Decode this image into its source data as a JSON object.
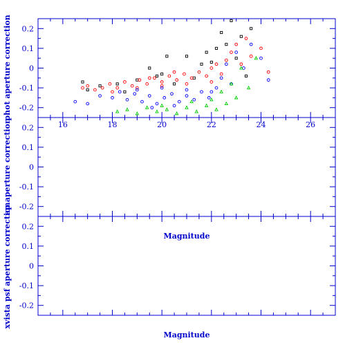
{
  "chart_data": [
    {
      "type": "scatter",
      "ylabel": "phot aperture correction",
      "xlim": [
        15,
        27
      ],
      "ylim": [
        -0.25,
        0.25
      ],
      "x_ticks": [
        "16",
        "18",
        "20",
        "22",
        "24",
        "26"
      ],
      "y_ticks": [
        "0.2",
        "0.1",
        "0",
        "-0.1",
        "-0.2"
      ],
      "series": [
        {
          "color": "#000000",
          "marker": "square",
          "points": [
            [
              16.8,
              -0.07
            ],
            [
              17.0,
              -0.11
            ],
            [
              17.5,
              -0.09
            ],
            [
              18.2,
              -0.08
            ],
            [
              18.5,
              -0.12
            ],
            [
              19.0,
              -0.06
            ],
            [
              19.5,
              0.0
            ],
            [
              20.0,
              -0.03
            ],
            [
              20.5,
              -0.08
            ],
            [
              21.0,
              0.06
            ],
            [
              21.3,
              -0.05
            ],
            [
              21.6,
              0.02
            ],
            [
              21.8,
              0.08
            ],
            [
              22.0,
              0.03
            ],
            [
              22.2,
              0.1
            ],
            [
              22.4,
              0.18
            ],
            [
              22.6,
              0.12
            ],
            [
              22.8,
              0.24
            ],
            [
              23.0,
              0.05
            ],
            [
              23.2,
              0.16
            ],
            [
              23.4,
              -0.04
            ],
            [
              23.6,
              0.2
            ],
            [
              20.2,
              0.06
            ],
            [
              19.8,
              -0.04
            ]
          ]
        },
        {
          "color": "#ff0000",
          "marker": "circle",
          "points": [
            [
              16.8,
              -0.1
            ],
            [
              17.0,
              -0.09
            ],
            [
              17.3,
              -0.11
            ],
            [
              17.6,
              -0.1
            ],
            [
              17.9,
              -0.08
            ],
            [
              18.2,
              -0.1
            ],
            [
              18.5,
              -0.07
            ],
            [
              18.8,
              -0.09
            ],
            [
              19.1,
              -0.06
            ],
            [
              19.4,
              -0.08
            ],
            [
              19.7,
              -0.05
            ],
            [
              20.0,
              -0.07
            ],
            [
              20.3,
              -0.04
            ],
            [
              20.6,
              -0.06
            ],
            [
              20.9,
              -0.03
            ],
            [
              21.2,
              -0.05
            ],
            [
              21.5,
              -0.02
            ],
            [
              21.8,
              -0.04
            ],
            [
              22.0,
              0.0
            ],
            [
              22.2,
              0.02
            ],
            [
              22.4,
              -0.03
            ],
            [
              22.6,
              0.04
            ],
            [
              22.8,
              0.08
            ],
            [
              23.0,
              0.12
            ],
            [
              23.2,
              0.02
            ],
            [
              23.4,
              0.15
            ],
            [
              23.6,
              0.06
            ],
            [
              24.0,
              0.1
            ],
            [
              24.3,
              -0.02
            ],
            [
              18.0,
              -0.12
            ],
            [
              19.0,
              -0.1
            ],
            [
              20.0,
              -0.09
            ],
            [
              21.0,
              -0.08
            ],
            [
              22.0,
              -0.07
            ],
            [
              20.5,
              -0.02
            ],
            [
              19.5,
              -0.05
            ]
          ]
        },
        {
          "color": "#0000ff",
          "marker": "circle",
          "points": [
            [
              16.5,
              -0.17
            ],
            [
              17.0,
              -0.18
            ],
            [
              17.5,
              -0.14
            ],
            [
              18.0,
              -0.15
            ],
            [
              18.3,
              -0.12
            ],
            [
              18.6,
              -0.16
            ],
            [
              18.9,
              -0.13
            ],
            [
              19.2,
              -0.17
            ],
            [
              19.5,
              -0.14
            ],
            [
              19.8,
              -0.18
            ],
            [
              20.1,
              -0.15
            ],
            [
              20.4,
              -0.13
            ],
            [
              20.7,
              -0.17
            ],
            [
              21.0,
              -0.14
            ],
            [
              21.3,
              -0.16
            ],
            [
              21.6,
              -0.12
            ],
            [
              21.9,
              -0.15
            ],
            [
              22.2,
              -0.1
            ],
            [
              22.4,
              -0.05
            ],
            [
              22.6,
              0.02
            ],
            [
              22.8,
              -0.08
            ],
            [
              23.0,
              0.08
            ],
            [
              23.3,
              0.0
            ],
            [
              23.6,
              0.12
            ],
            [
              24.0,
              0.05
            ],
            [
              24.3,
              -0.06
            ],
            [
              19.0,
              -0.11
            ],
            [
              20.0,
              -0.1
            ],
            [
              21.0,
              -0.11
            ],
            [
              22.0,
              -0.12
            ],
            [
              20.5,
              -0.19
            ],
            [
              19.6,
              -0.2
            ]
          ]
        },
        {
          "color": "#00cc00",
          "marker": "triangle",
          "points": [
            [
              18.2,
              -0.22
            ],
            [
              18.6,
              -0.21
            ],
            [
              19.0,
              -0.23
            ],
            [
              19.4,
              -0.2
            ],
            [
              19.8,
              -0.22
            ],
            [
              20.2,
              -0.21
            ],
            [
              20.6,
              -0.23
            ],
            [
              21.0,
              -0.2
            ],
            [
              21.4,
              -0.22
            ],
            [
              21.8,
              -0.19
            ],
            [
              22.0,
              -0.16
            ],
            [
              22.2,
              -0.21
            ],
            [
              22.4,
              -0.12
            ],
            [
              22.6,
              -0.18
            ],
            [
              22.8,
              -0.08
            ],
            [
              23.0,
              -0.15
            ],
            [
              23.2,
              0.0
            ],
            [
              23.5,
              -0.1
            ],
            [
              23.8,
              0.05
            ],
            [
              21.2,
              -0.17
            ],
            [
              20.0,
              -0.19
            ]
          ]
        }
      ]
    },
    {
      "type": "scatter",
      "ylabel": "ap aperture correction",
      "xlim": [
        15,
        27
      ],
      "ylim": [
        -0.25,
        0.25
      ],
      "xlabel": "Magnitude",
      "y_ticks": [
        "0.2",
        "0.1",
        "0",
        "-0.1",
        "-0.2"
      ],
      "series": []
    },
    {
      "type": "scatter",
      "ylabel": "xvista psf aperture correction",
      "xlim": [
        15,
        27
      ],
      "ylim": [
        -0.25,
        0.25
      ],
      "xlabel": "Magnitude",
      "y_ticks": [
        "0.2",
        "0.1",
        "0",
        "-0.1",
        "-0.2"
      ],
      "series": []
    }
  ]
}
